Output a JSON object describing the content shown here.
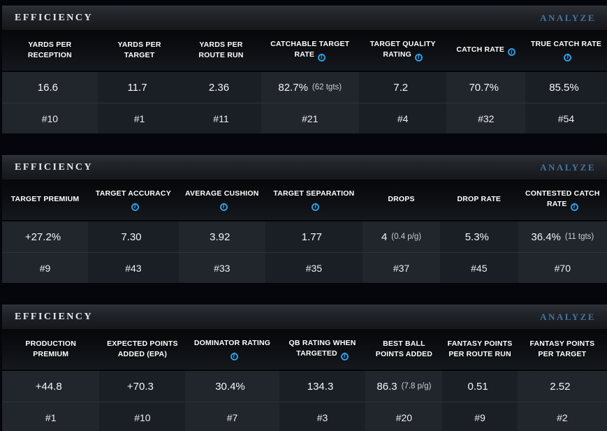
{
  "colors": {
    "analyze_link": "#4475a4",
    "info_icon": "#2d9de4"
  },
  "tables": [
    {
      "title": "EFFICIENCY",
      "action_label": "ANALYZE",
      "columns": [
        {
          "label": "YARDS PER RECEPTION",
          "info": false,
          "value": "16.6",
          "note": "",
          "rank": "#10"
        },
        {
          "label": "YARDS PER TARGET",
          "info": false,
          "value": "11.7",
          "note": "",
          "rank": "#1"
        },
        {
          "label": "YARDS PER ROUTE RUN",
          "info": false,
          "value": "2.36",
          "note": "",
          "rank": "#11"
        },
        {
          "label": "CATCHABLE TARGET RATE",
          "info": true,
          "value": "82.7%",
          "note": "(62 tgts)",
          "rank": "#21"
        },
        {
          "label": "TARGET QUALITY RATING",
          "info": true,
          "value": "7.2",
          "note": "",
          "rank": "#4"
        },
        {
          "label": "CATCH RATE",
          "info": true,
          "value": "70.7%",
          "note": "",
          "rank": "#32"
        },
        {
          "label": "TRUE CATCH RATE",
          "info": true,
          "value": "85.5%",
          "note": "",
          "rank": "#54"
        }
      ]
    },
    {
      "title": "EFFICIENCY",
      "action_label": "ANALYZE",
      "columns": [
        {
          "label": "TARGET PREMIUM",
          "info": false,
          "value": "+27.2%",
          "note": "",
          "rank": "#9"
        },
        {
          "label": "TARGET ACCURACY",
          "info": true,
          "value": "7.30",
          "note": "",
          "rank": "#43"
        },
        {
          "label": "AVERAGE CUSHION",
          "info": true,
          "value": "3.92",
          "note": "",
          "rank": "#33"
        },
        {
          "label": "TARGET SEPARATION",
          "info": true,
          "value": "1.77",
          "note": "",
          "rank": "#35"
        },
        {
          "label": "DROPS",
          "info": false,
          "value": "4",
          "note": "(0.4 p/g)",
          "rank": "#37"
        },
        {
          "label": "DROP RATE",
          "info": false,
          "value": "5.3%",
          "note": "",
          "rank": "#45"
        },
        {
          "label": "CONTESTED CATCH RATE",
          "info": true,
          "value": "36.4%",
          "note": "(11 tgts)",
          "rank": "#70"
        }
      ]
    },
    {
      "title": "EFFICIENCY",
      "action_label": "ANALYZE",
      "columns": [
        {
          "label": "PRODUCTION PREMIUM",
          "info": false,
          "value": "+44.8",
          "note": "",
          "rank": "#1"
        },
        {
          "label": "EXPECTED POINTS ADDED (EPA)",
          "info": false,
          "value": "+70.3",
          "note": "",
          "rank": "#10"
        },
        {
          "label": "DOMINATOR RATING",
          "info": true,
          "value": "30.4%",
          "note": "",
          "rank": "#7"
        },
        {
          "label": "QB RATING WHEN TARGETED",
          "info": true,
          "value": "134.3",
          "note": "",
          "rank": "#3"
        },
        {
          "label": "BEST BALL POINTS ADDED",
          "info": false,
          "value": "86.3",
          "note": "(7.8 p/g)",
          "rank": "#20"
        },
        {
          "label": "FANTASY POINTS PER ROUTE RUN",
          "info": false,
          "value": "0.51",
          "note": "",
          "rank": "#9"
        },
        {
          "label": "FANTASY POINTS PER TARGET",
          "info": false,
          "value": "2.52",
          "note": "",
          "rank": "#2"
        }
      ]
    }
  ]
}
